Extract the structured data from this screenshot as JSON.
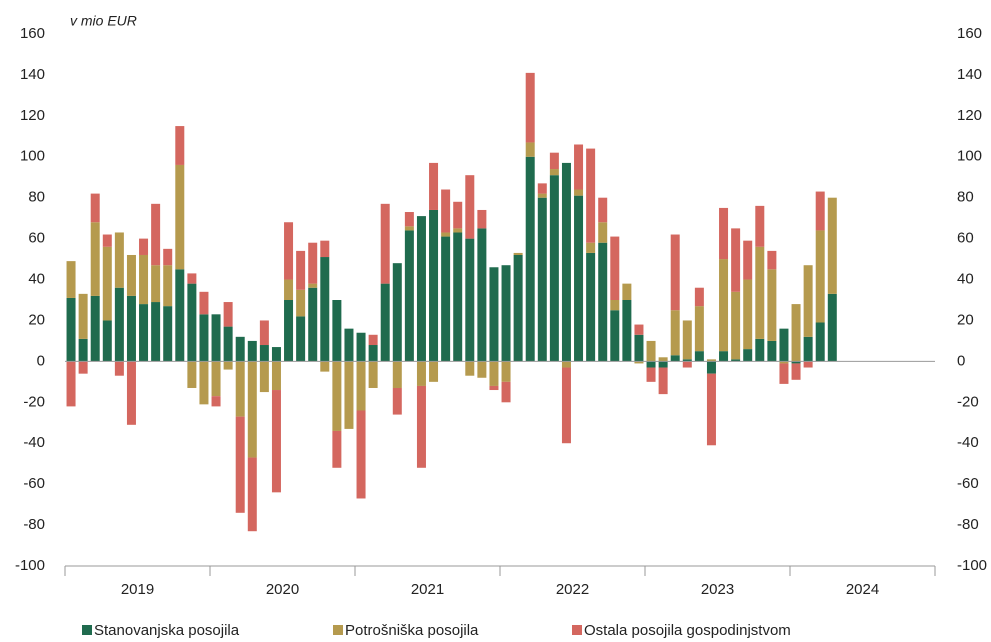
{
  "chart_data": {
    "type": "stacked_bar",
    "annotation": "v mio EUR",
    "categories": [
      null,
      null,
      null,
      null,
      null,
      null,
      null,
      null,
      null,
      null,
      null,
      null,
      null,
      null,
      null,
      null,
      null,
      null,
      null,
      null,
      null,
      null,
      null,
      null,
      null,
      null,
      null,
      null,
      null,
      null,
      null,
      null,
      null,
      null,
      null,
      null,
      null,
      null,
      null,
      null,
      null,
      null,
      null,
      null,
      null,
      null,
      null,
      null,
      null,
      null,
      null,
      null,
      null,
      null,
      null,
      null,
      null,
      null,
      null,
      null,
      null,
      null,
      null,
      null
    ],
    "x_labels": [
      "2019",
      "2020",
      "2021",
      "2022",
      "2023",
      "2024"
    ],
    "series": [
      {
        "name": "Stanovanjska posojila",
        "color": "#1f6b4e",
        "values": [
          31,
          11,
          32,
          20,
          36,
          32,
          28,
          29,
          27,
          45,
          38,
          23,
          23,
          17,
          12,
          10,
          8,
          7,
          30,
          22,
          36,
          51,
          30,
          16,
          14,
          8,
          38,
          48,
          64,
          71,
          74,
          61,
          63,
          60,
          65,
          46,
          47,
          52,
          100,
          80,
          91,
          97,
          81,
          53,
          58,
          25,
          30,
          13,
          -3,
          -3,
          3,
          1,
          5,
          -6,
          5,
          1,
          6,
          11,
          10,
          16,
          -1,
          12,
          19,
          33
        ]
      },
      {
        "name": "Potrošniška posojila",
        "color": "#b59a4e",
        "values": [
          18,
          22,
          36,
          36,
          27,
          20,
          24,
          18,
          20,
          51,
          -13,
          -21,
          -17,
          -4,
          -27,
          -47,
          -15,
          -14,
          10,
          13,
          2,
          -5,
          -34,
          -33,
          -24,
          -13,
          0,
          -13,
          2,
          -12,
          -10,
          2,
          2,
          -7,
          -8,
          -12,
          -10,
          1,
          7,
          2,
          3,
          -3,
          3,
          5,
          10,
          5,
          8,
          -1,
          10,
          2,
          22,
          19,
          22,
          1,
          45,
          33,
          34,
          45,
          35,
          -1,
          28,
          35,
          45,
          47
        ]
      },
      {
        "name": "Ostala posojila gospodinjstvom",
        "color": "#d4675f",
        "values": [
          -22,
          -6,
          14,
          6,
          -7,
          -31,
          8,
          30,
          8,
          19,
          5,
          11,
          -5,
          12,
          -47,
          -36,
          12,
          -50,
          28,
          19,
          20,
          8,
          -18,
          0,
          -43,
          5,
          39,
          -13,
          7,
          -40,
          23,
          21,
          13,
          31,
          9,
          -2,
          -10,
          0,
          34,
          5,
          8,
          -37,
          22,
          46,
          12,
          31,
          0,
          5,
          -7,
          -13,
          37,
          -3,
          9,
          -35,
          25,
          31,
          19,
          20,
          9,
          -10,
          -8,
          -3,
          19,
          0
        ]
      }
    ],
    "ylim": [
      -100,
      160
    ],
    "yticks": [
      -100,
      -80,
      -60,
      -40,
      -20,
      0,
      20,
      40,
      60,
      80,
      100,
      120,
      140,
      160
    ],
    "legend": "bottom"
  }
}
